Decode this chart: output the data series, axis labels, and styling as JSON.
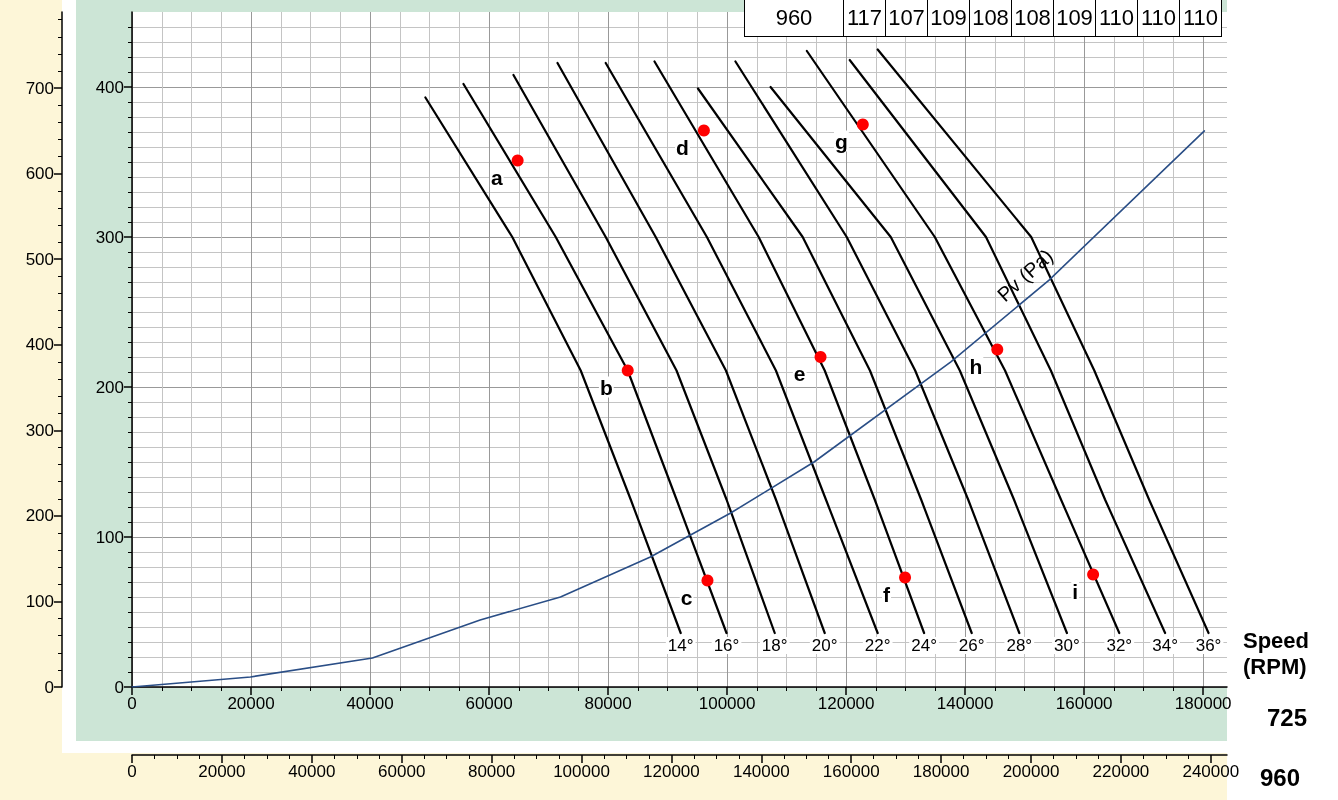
{
  "chart_data": {
    "type": "line",
    "xlabel": "725",
    "x2label": "960",
    "xlim": [
      0,
      184000
    ],
    "xticks": [
      0,
      20000,
      40000,
      60000,
      80000,
      100000,
      120000,
      140000,
      160000,
      180000
    ],
    "x2lim": [
      0,
      243600
    ],
    "x2ticks": [
      0,
      20000,
      40000,
      60000,
      80000,
      100000,
      120000,
      140000,
      160000,
      180000,
      200000,
      220000,
      240000
    ],
    "ylim": [
      0,
      450
    ],
    "yticks": [
      0,
      100,
      200,
      300,
      400
    ],
    "y2lim": [
      0,
      789
    ],
    "y2ticks": [
      0,
      100,
      200,
      300,
      400,
      500,
      600,
      700
    ],
    "grid": true,
    "marker": "none",
    "line_style": "solid",
    "series": [
      {
        "name": "14°",
        "color": "#000000",
        "x": [
          49300,
          63900,
          75400,
          83800,
          92200
        ],
        "values": [
          393,
          300,
          211,
          125,
          36
        ]
      },
      {
        "name": "16°",
        "color": "#000000",
        "x": [
          55700,
          71200,
          83300,
          91500,
          99900
        ],
        "values": [
          402,
          300,
          211,
          125,
          36
        ]
      },
      {
        "name": "18°",
        "color": "#000000",
        "x": [
          64100,
          79600,
          91500,
          99900,
          108000
        ],
        "values": [
          408,
          300,
          211,
          125,
          36
        ]
      },
      {
        "name": "20°",
        "color": "#000000",
        "x": [
          71500,
          88000,
          99800,
          108200,
          116400
        ],
        "values": [
          416,
          300,
          211,
          125,
          36
        ]
      },
      {
        "name": "22°",
        "color": "#000000",
        "x": [
          79600,
          96600,
          108200,
          116600,
          125300
        ],
        "values": [
          416,
          300,
          211,
          125,
          36
        ]
      },
      {
        "name": "24°",
        "color": "#000000",
        "x": [
          87800,
          105300,
          116400,
          124800,
          133100
        ],
        "values": [
          417,
          300,
          211,
          125,
          36
        ]
      },
      {
        "name": "26°",
        "color": "#000000",
        "x": [
          95100,
          112700,
          124000,
          132600,
          141100
        ],
        "values": [
          399,
          300,
          211,
          125,
          36
        ]
      },
      {
        "name": "28°",
        "color": "#000000",
        "x": [
          101400,
          120100,
          131600,
          140500,
          149100
        ],
        "values": [
          417,
          300,
          211,
          125,
          36
        ]
      },
      {
        "name": "30°",
        "color": "#000000",
        "x": [
          107300,
          127500,
          139100,
          148200,
          157100
        ],
        "values": [
          400,
          300,
          211,
          125,
          36
        ]
      },
      {
        "name": "32°",
        "color": "#000000",
        "x": [
          113400,
          134900,
          146700,
          156100,
          165900
        ],
        "values": [
          424,
          300,
          211,
          125,
          36
        ]
      },
      {
        "name": "34°",
        "color": "#000000",
        "x": [
          120600,
          143500,
          154400,
          163500,
          173600
        ],
        "values": [
          418,
          300,
          211,
          125,
          36
        ]
      },
      {
        "name": "36°",
        "color": "#000000",
        "x": [
          125300,
          151100,
          161700,
          170900,
          180900
        ],
        "values": [
          425,
          300,
          211,
          125,
          36
        ]
      },
      {
        "name": "Pv (Pa)",
        "color": "#2a4e86",
        "x": [
          0,
          19900,
          40400,
          58500,
          72000,
          87100,
          100600,
          114600,
          137600,
          154100,
          180200
        ],
        "values": [
          0,
          6.7,
          19.3,
          44.7,
          60,
          86.7,
          116,
          150,
          216.7,
          271.3,
          370.7
        ]
      },
      {
        "type": "scatter",
        "marker": "circle",
        "color": "#ff0000",
        "x": [
          64800,
          83300,
          96700,
          96100,
          115700,
          129900,
          122800,
          145400,
          161500
        ],
        "values": [
          351,
          211,
          71,
          371,
          220,
          73,
          375,
          225,
          75
        ]
      }
    ],
    "annotations": [
      "Speed (RPM)",
      "960",
      "117",
      "107",
      "109",
      "108",
      "108",
      "109",
      "110",
      "110",
      "110",
      {
        "text": "a",
        "x": 64800,
        "y": 351
      },
      {
        "text": "b",
        "x": 83300,
        "y": 211
      },
      {
        "text": "c",
        "x": 96700,
        "y": 71
      },
      {
        "text": "d",
        "x": 96100,
        "y": 371
      },
      {
        "text": "e",
        "x": 115700,
        "y": 220
      },
      {
        "text": "f",
        "x": 129900,
        "y": 73
      },
      {
        "text": "g",
        "x": 122800,
        "y": 375
      },
      {
        "text": "h",
        "x": 145400,
        "y": 225
      },
      {
        "text": "i",
        "x": 161500,
        "y": 75
      }
    ]
  }
}
